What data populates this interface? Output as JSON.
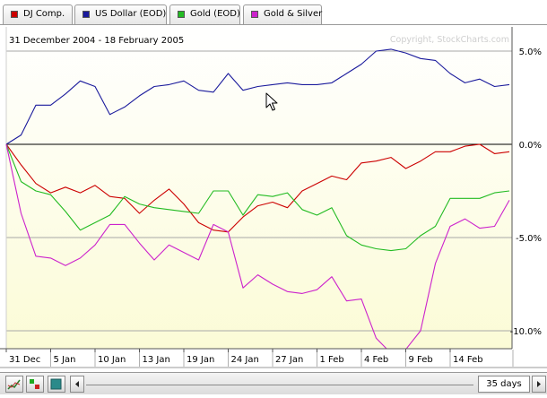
{
  "legend_tabs": [
    {
      "label": "DJ Comp.",
      "color": "#cc0000"
    },
    {
      "label": "US Dollar (EOD)",
      "color": "#1a1a9c"
    },
    {
      "label": "Gold (EOD)",
      "color": "#22bb22"
    },
    {
      "label": "Gold & Silver",
      "color": "#cc22cc"
    }
  ],
  "date_range": "31 December 2004 - 18 February 2005",
  "watermark": "Copyright, StockCharts.com",
  "controls": {
    "period": "35 days",
    "scroll_left_icon": "arrow-left-icon",
    "scroll_right_icon": "arrow-right-icon"
  },
  "chart_data": {
    "type": "line",
    "x": [
      "31 Dec",
      "3 Jan",
      "4 Jan",
      "5 Jan",
      "6 Jan",
      "7 Jan",
      "10 Jan",
      "11 Jan",
      "12 Jan",
      "13 Jan",
      "14 Jan",
      "18 Jan",
      "19 Jan",
      "20 Jan",
      "21 Jan",
      "24 Jan",
      "25 Jan",
      "26 Jan",
      "27 Jan",
      "28 Jan",
      "31 Jan",
      "1 Feb",
      "2 Feb",
      "3 Feb",
      "4 Feb",
      "7 Feb",
      "8 Feb",
      "9 Feb",
      "10 Feb",
      "11 Feb",
      "14 Feb",
      "15 Feb",
      "16 Feb",
      "17 Feb",
      "18 Feb"
    ],
    "xticks": [
      "31 Dec",
      "5 Jan",
      "10 Jan",
      "13 Jan",
      "19 Jan",
      "24 Jan",
      "27 Jan",
      "1 Feb",
      "4 Feb",
      "9 Feb",
      "14 Feb"
    ],
    "ylim": [
      -11.2,
      6.0
    ],
    "yticks": [
      5.0,
      0.0,
      -5.0,
      -10.0
    ],
    "ytick_labels": [
      "5.0%",
      "0.0%",
      "-5.0%",
      "-10.0%"
    ],
    "y_unit": "%",
    "series": [
      {
        "name": "DJ Comp.",
        "color": "#cc0000",
        "values": [
          0.0,
          -1.1,
          -2.1,
          -2.6,
          -2.3,
          -2.6,
          -2.2,
          -2.8,
          -2.9,
          -3.7,
          -3.0,
          -2.4,
          -3.2,
          -4.2,
          -4.6,
          -4.7,
          -3.9,
          -3.3,
          -3.1,
          -3.4,
          -2.5,
          -2.1,
          -1.7,
          -1.9,
          -1.0,
          -0.9,
          -0.7,
          -1.3,
          -0.9,
          -0.4,
          -0.4,
          -0.1,
          0.0,
          -0.5,
          -0.4
        ]
      },
      {
        "name": "US Dollar (EOD)",
        "color": "#1a1a9c",
        "values": [
          0.0,
          0.5,
          2.1,
          2.1,
          2.7,
          3.4,
          3.1,
          1.6,
          2.0,
          2.6,
          3.1,
          3.2,
          3.4,
          2.9,
          2.8,
          3.8,
          2.9,
          3.1,
          3.2,
          3.3,
          3.2,
          3.2,
          3.3,
          3.8,
          4.3,
          5.0,
          5.1,
          4.9,
          4.6,
          4.5,
          3.8,
          3.3,
          3.5,
          3.1,
          3.2
        ]
      },
      {
        "name": "Gold (EOD)",
        "color": "#22bb22",
        "values": [
          0.0,
          -2.0,
          -2.5,
          -2.7,
          -3.6,
          -4.6,
          -4.2,
          -3.8,
          -2.8,
          -3.2,
          -3.4,
          -3.5,
          -3.6,
          -3.7,
          -2.5,
          -2.5,
          -3.8,
          -2.7,
          -2.8,
          -2.6,
          -3.5,
          -3.8,
          -3.4,
          -4.9,
          -5.4,
          -5.6,
          -5.7,
          -5.6,
          -4.9,
          -4.4,
          -2.9,
          -2.9,
          -2.9,
          -2.6,
          -2.5
        ]
      },
      {
        "name": "Gold & Silver",
        "color": "#cc22cc",
        "values": [
          0.0,
          -3.7,
          -6.0,
          -6.1,
          -6.5,
          -6.1,
          -5.4,
          -4.3,
          -4.3,
          -5.3,
          -6.2,
          -5.4,
          -5.8,
          -6.2,
          -4.3,
          -4.7,
          -7.7,
          -7.0,
          -7.5,
          -7.9,
          -8.0,
          -7.8,
          -7.1,
          -8.4,
          -8.3,
          -10.4,
          -11.2,
          -11.0,
          -10.0,
          -6.4,
          -4.4,
          -4.0,
          -4.5,
          -4.4,
          -3.0
        ]
      }
    ]
  }
}
